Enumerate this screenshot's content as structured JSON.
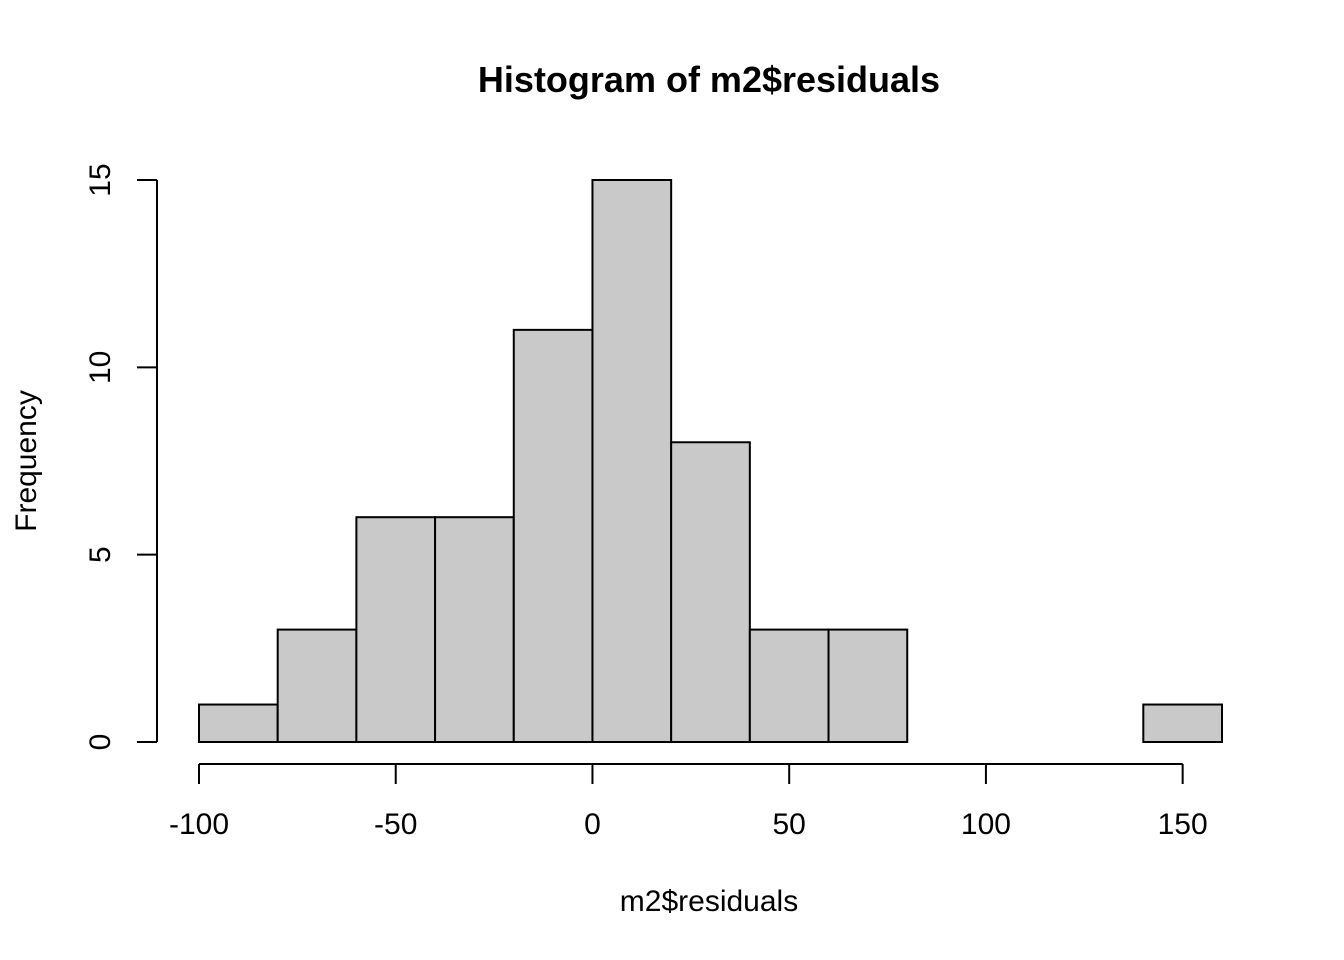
{
  "chart_data": {
    "type": "bar",
    "title": "Histogram of m2$residuals",
    "xlabel": "m2$residuals",
    "ylabel": "Frequency",
    "bins": [
      {
        "from": -100,
        "to": -80,
        "count": 1
      },
      {
        "from": -80,
        "to": -60,
        "count": 3
      },
      {
        "from": -60,
        "to": -40,
        "count": 6
      },
      {
        "from": -40,
        "to": -20,
        "count": 6
      },
      {
        "from": -20,
        "to": 0,
        "count": 11
      },
      {
        "from": 0,
        "to": 20,
        "count": 15
      },
      {
        "from": 20,
        "to": 40,
        "count": 8
      },
      {
        "from": 40,
        "to": 60,
        "count": 3
      },
      {
        "from": 60,
        "to": 80,
        "count": 3
      },
      {
        "from": 80,
        "to": 100,
        "count": 0
      },
      {
        "from": 100,
        "to": 120,
        "count": 0
      },
      {
        "from": 120,
        "to": 140,
        "count": 0
      },
      {
        "from": 140,
        "to": 160,
        "count": 1
      }
    ],
    "xlim": [
      -100,
      160
    ],
    "ylim": [
      0,
      15
    ],
    "x_ticks": [
      -100,
      -50,
      0,
      50,
      100,
      150
    ],
    "y_ticks": [
      0,
      5,
      10,
      15
    ],
    "x_tick_labels": [
      "-100",
      "-50",
      "0",
      "50",
      "100",
      "150"
    ],
    "y_tick_labels": [
      "0",
      "5",
      "10",
      "15"
    ],
    "grid": false,
    "bar_color": "#c9c9c9",
    "edge_color": "#000000"
  }
}
